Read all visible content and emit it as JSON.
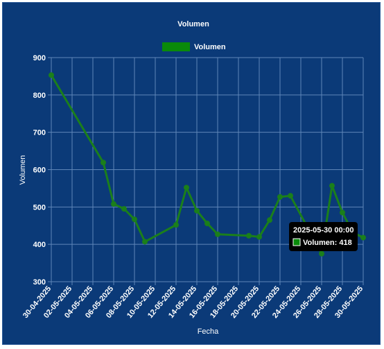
{
  "colors": {
    "background": "#0b3a78",
    "grid": "#5f86b8",
    "series": "#1b7f1b",
    "legend_box": "#0a8a0a",
    "text": "#ffffff",
    "tooltip_bg": "#000000"
  },
  "tooltip": {
    "title": "2025-05-30 00:00",
    "body": "Volumen: 418"
  },
  "chart_data": {
    "type": "line",
    "title": "Volumen",
    "xlabel": "Fecha",
    "ylabel": "Volumen",
    "ylim": [
      300,
      900
    ],
    "yticks": [
      300,
      400,
      500,
      600,
      700,
      800,
      900
    ],
    "xlim": [
      "2025-04-30",
      "2025-05-30"
    ],
    "xticks": [
      "30-04-2025",
      "02-05-2025",
      "04-05-2025",
      "06-05-2025",
      "08-05-2025",
      "10-05-2025",
      "12-05-2025",
      "14-05-2025",
      "16-05-2025",
      "18-05-2025",
      "20-05-2025",
      "22-05-2025",
      "24-05-2025",
      "26-05-2025",
      "28-05-2025",
      "30-05-2025"
    ],
    "grid": true,
    "legend_position": "top",
    "series": [
      {
        "name": "Volumen",
        "points": [
          {
            "x": "2025-04-30",
            "y": 853
          },
          {
            "x": "2025-05-05",
            "y": 619
          },
          {
            "x": "2025-05-06",
            "y": 508
          },
          {
            "x": "2025-05-07",
            "y": 495
          },
          {
            "x": "2025-05-08",
            "y": 467
          },
          {
            "x": "2025-05-09",
            "y": 407
          },
          {
            "x": "2025-05-12",
            "y": 452
          },
          {
            "x": "2025-05-13",
            "y": 552
          },
          {
            "x": "2025-05-14",
            "y": 490
          },
          {
            "x": "2025-05-15",
            "y": 456
          },
          {
            "x": "2025-05-16",
            "y": 427
          },
          {
            "x": "2025-05-19",
            "y": 423
          },
          {
            "x": "2025-05-20",
            "y": 420
          },
          {
            "x": "2025-05-21",
            "y": 465
          },
          {
            "x": "2025-05-22",
            "y": 527
          },
          {
            "x": "2025-05-23",
            "y": 530
          },
          {
            "x": "2025-05-26",
            "y": 375
          },
          {
            "x": "2025-05-27",
            "y": 557
          },
          {
            "x": "2025-05-28",
            "y": 485
          },
          {
            "x": "2025-05-29",
            "y": 432
          },
          {
            "x": "2025-05-30",
            "y": 418
          }
        ]
      }
    ]
  }
}
